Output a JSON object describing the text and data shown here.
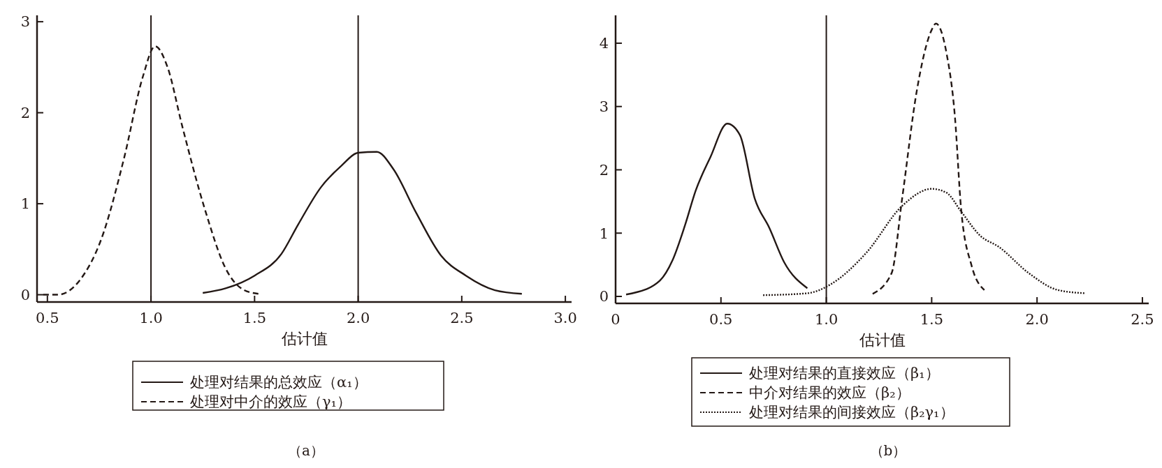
{
  "chart_data": [
    {
      "type": "line",
      "xlabel": "估计值",
      "xlim": [
        0.45,
        3.03
      ],
      "ylim": [
        -0.08,
        3.07
      ],
      "xticks": [
        0.5,
        {
          "value": 1.0,
          "label": "1.0"
        },
        1.5,
        {
          "value": 2.0,
          "label": "2.0"
        },
        2.5,
        {
          "value": 3.0,
          "label": "3.0"
        }
      ],
      "yticks": [
        0,
        1,
        2,
        3
      ],
      "legend": "bottom",
      "annotations": [
        "（a）"
      ],
      "ref_lines": [
        {
          "axis": "x",
          "value": 1.0,
          "color": "#231815"
        },
        {
          "axis": "x",
          "value": 2.0,
          "color": "#231815"
        }
      ],
      "series": [
        {
          "name": "处理对结果的总效应（α₁）",
          "color": "#231815",
          "line_style": "solid",
          "x": [
            1.25,
            1.36,
            1.5,
            1.63,
            1.71,
            1.82,
            1.92,
            2.0,
            2.09,
            2.17,
            2.28,
            2.4,
            2.52,
            2.66,
            2.79
          ],
          "values": [
            0.02,
            0.07,
            0.21,
            0.45,
            0.77,
            1.18,
            1.42,
            1.56,
            1.57,
            1.38,
            0.9,
            0.43,
            0.21,
            0.05,
            0.01
          ]
        },
        {
          "name": "处理对中介的效应（γ₁）",
          "color": "#231815",
          "line_style": "dashed",
          "x": [
            0.48,
            0.55,
            0.66,
            0.76,
            0.87,
            0.96,
            1.02,
            1.08,
            1.15,
            1.26,
            1.36,
            1.45,
            1.52
          ],
          "values": [
            0,
            0,
            0.17,
            0.61,
            1.5,
            2.39,
            2.73,
            2.5,
            1.86,
            0.94,
            0.29,
            0.05,
            0.01
          ]
        }
      ]
    },
    {
      "type": "line",
      "xlabel": "估计值",
      "xlim": [
        0,
        2.53
      ],
      "ylim": [
        -0.11,
        4.44
      ],
      "xticks": [
        0,
        {
          "value": 0.5,
          "label": "0.5"
        },
        {
          "value": 1.0,
          "label": "1.0"
        },
        {
          "value": 1.5,
          "label": "1.5"
        },
        {
          "value": 2.0,
          "label": "2.0"
        },
        {
          "value": 2.5,
          "label": "2.5"
        }
      ],
      "yticks": [
        0,
        1,
        2,
        3,
        4
      ],
      "legend": "bottom",
      "annotations": [
        "（b）"
      ],
      "ref_lines": [
        {
          "axis": "x",
          "value": 1.0,
          "color": "#231815"
        }
      ],
      "series": [
        {
          "name": "处理对结果的直接效应（β₁）",
          "color": "#231815",
          "line_style": "solid",
          "x": [
            0.05,
            0.08,
            0.21,
            0.27,
            0.33,
            0.38,
            0.45,
            0.53,
            0.59,
            0.66,
            0.73,
            0.8,
            0.91
          ],
          "values": [
            0.03,
            0.05,
            0.25,
            0.57,
            1.13,
            1.67,
            2.2,
            2.73,
            2.55,
            1.55,
            1.08,
            0.54,
            0.13
          ]
        },
        {
          "name": "中介对结果的效应（β₂）",
          "color": "#231815",
          "line_style": "dashed",
          "x": [
            1.22,
            1.31,
            1.36,
            1.43,
            1.5,
            1.52,
            1.57,
            1.61,
            1.64,
            1.69,
            1.75
          ],
          "values": [
            0.04,
            0.37,
            1.55,
            3.26,
            4.21,
            4.31,
            3.85,
            2.85,
            1.37,
            0.48,
            0.1
          ]
        },
        {
          "name": "处理对结果的间接效应（β₂γ₁）",
          "color": "#231815",
          "line_style": "dotted",
          "x": [
            0.7,
            0.91,
            1.02,
            1.19,
            1.36,
            1.5,
            1.57,
            1.64,
            1.73,
            1.82,
            1.96,
            2.1,
            2.23
          ],
          "values": [
            0.02,
            0.05,
            0.19,
            0.69,
            1.43,
            1.7,
            1.64,
            1.34,
            0.96,
            0.78,
            0.37,
            0.1,
            0.05
          ]
        }
      ]
    }
  ]
}
